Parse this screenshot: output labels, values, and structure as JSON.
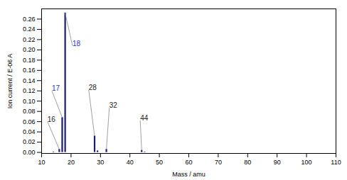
{
  "chart_data": {
    "type": "bar",
    "xlabel": "Mass / amu",
    "ylabel": "Ion current / E-06 A",
    "x": [
      14,
      16,
      17,
      18,
      28,
      29,
      32,
      44,
      45
    ],
    "values": [
      0.001,
      0.006,
      0.068,
      0.272,
      0.032,
      0.003,
      0.006,
      0.004,
      0.001
    ],
    "color": "#1c1c6e",
    "xlim": [
      10,
      110
    ],
    "ylim": [
      -0.002,
      0.28
    ],
    "xticks": [
      10,
      20,
      30,
      40,
      50,
      60,
      70,
      80,
      90,
      100,
      110
    ],
    "yticks": [
      {
        "value": 0.0,
        "label": "0.00"
      },
      {
        "value": 0.02,
        "label": "0.02"
      },
      {
        "value": 0.04,
        "label": "0.04"
      },
      {
        "value": 0.06,
        "label": "0.06"
      },
      {
        "value": 0.08,
        "label": "0.08"
      },
      {
        "value": 0.1,
        "label": "0.10"
      },
      {
        "value": 0.12,
        "label": "0.12"
      },
      {
        "value": 0.14,
        "label": "0.14"
      },
      {
        "value": 0.16,
        "label": "0.16"
      },
      {
        "value": 0.18,
        "label": "0.18"
      },
      {
        "value": 0.2,
        "label": "0.20"
      },
      {
        "value": 0.22,
        "label": "0.22"
      },
      {
        "value": 0.24,
        "label": "0.24"
      },
      {
        "value": 0.26,
        "label": "0.26"
      }
    ],
    "grid": false,
    "annotations": [
      {
        "label": "16",
        "x": 16,
        "y": 0.006,
        "text_x": 12.0,
        "text_y": 0.06,
        "color": "#222222"
      },
      {
        "label": "17",
        "x": 17,
        "y": 0.068,
        "text_x": 13.5,
        "text_y": 0.12,
        "color": "#2233cc"
      },
      {
        "label": "18",
        "x": 18,
        "y": 0.272,
        "text_x": 20.5,
        "text_y": 0.208,
        "color": "#2233cc"
      },
      {
        "label": "28",
        "x": 28,
        "y": 0.032,
        "text_x": 26.0,
        "text_y": 0.122,
        "color": "#222222"
      },
      {
        "label": "32",
        "x": 32,
        "y": 0.006,
        "text_x": 33.0,
        "text_y": 0.087,
        "color": "#222222"
      },
      {
        "label": "44",
        "x": 44,
        "y": 0.004,
        "text_x": 43.5,
        "text_y": 0.062,
        "color": "#222222"
      }
    ]
  }
}
